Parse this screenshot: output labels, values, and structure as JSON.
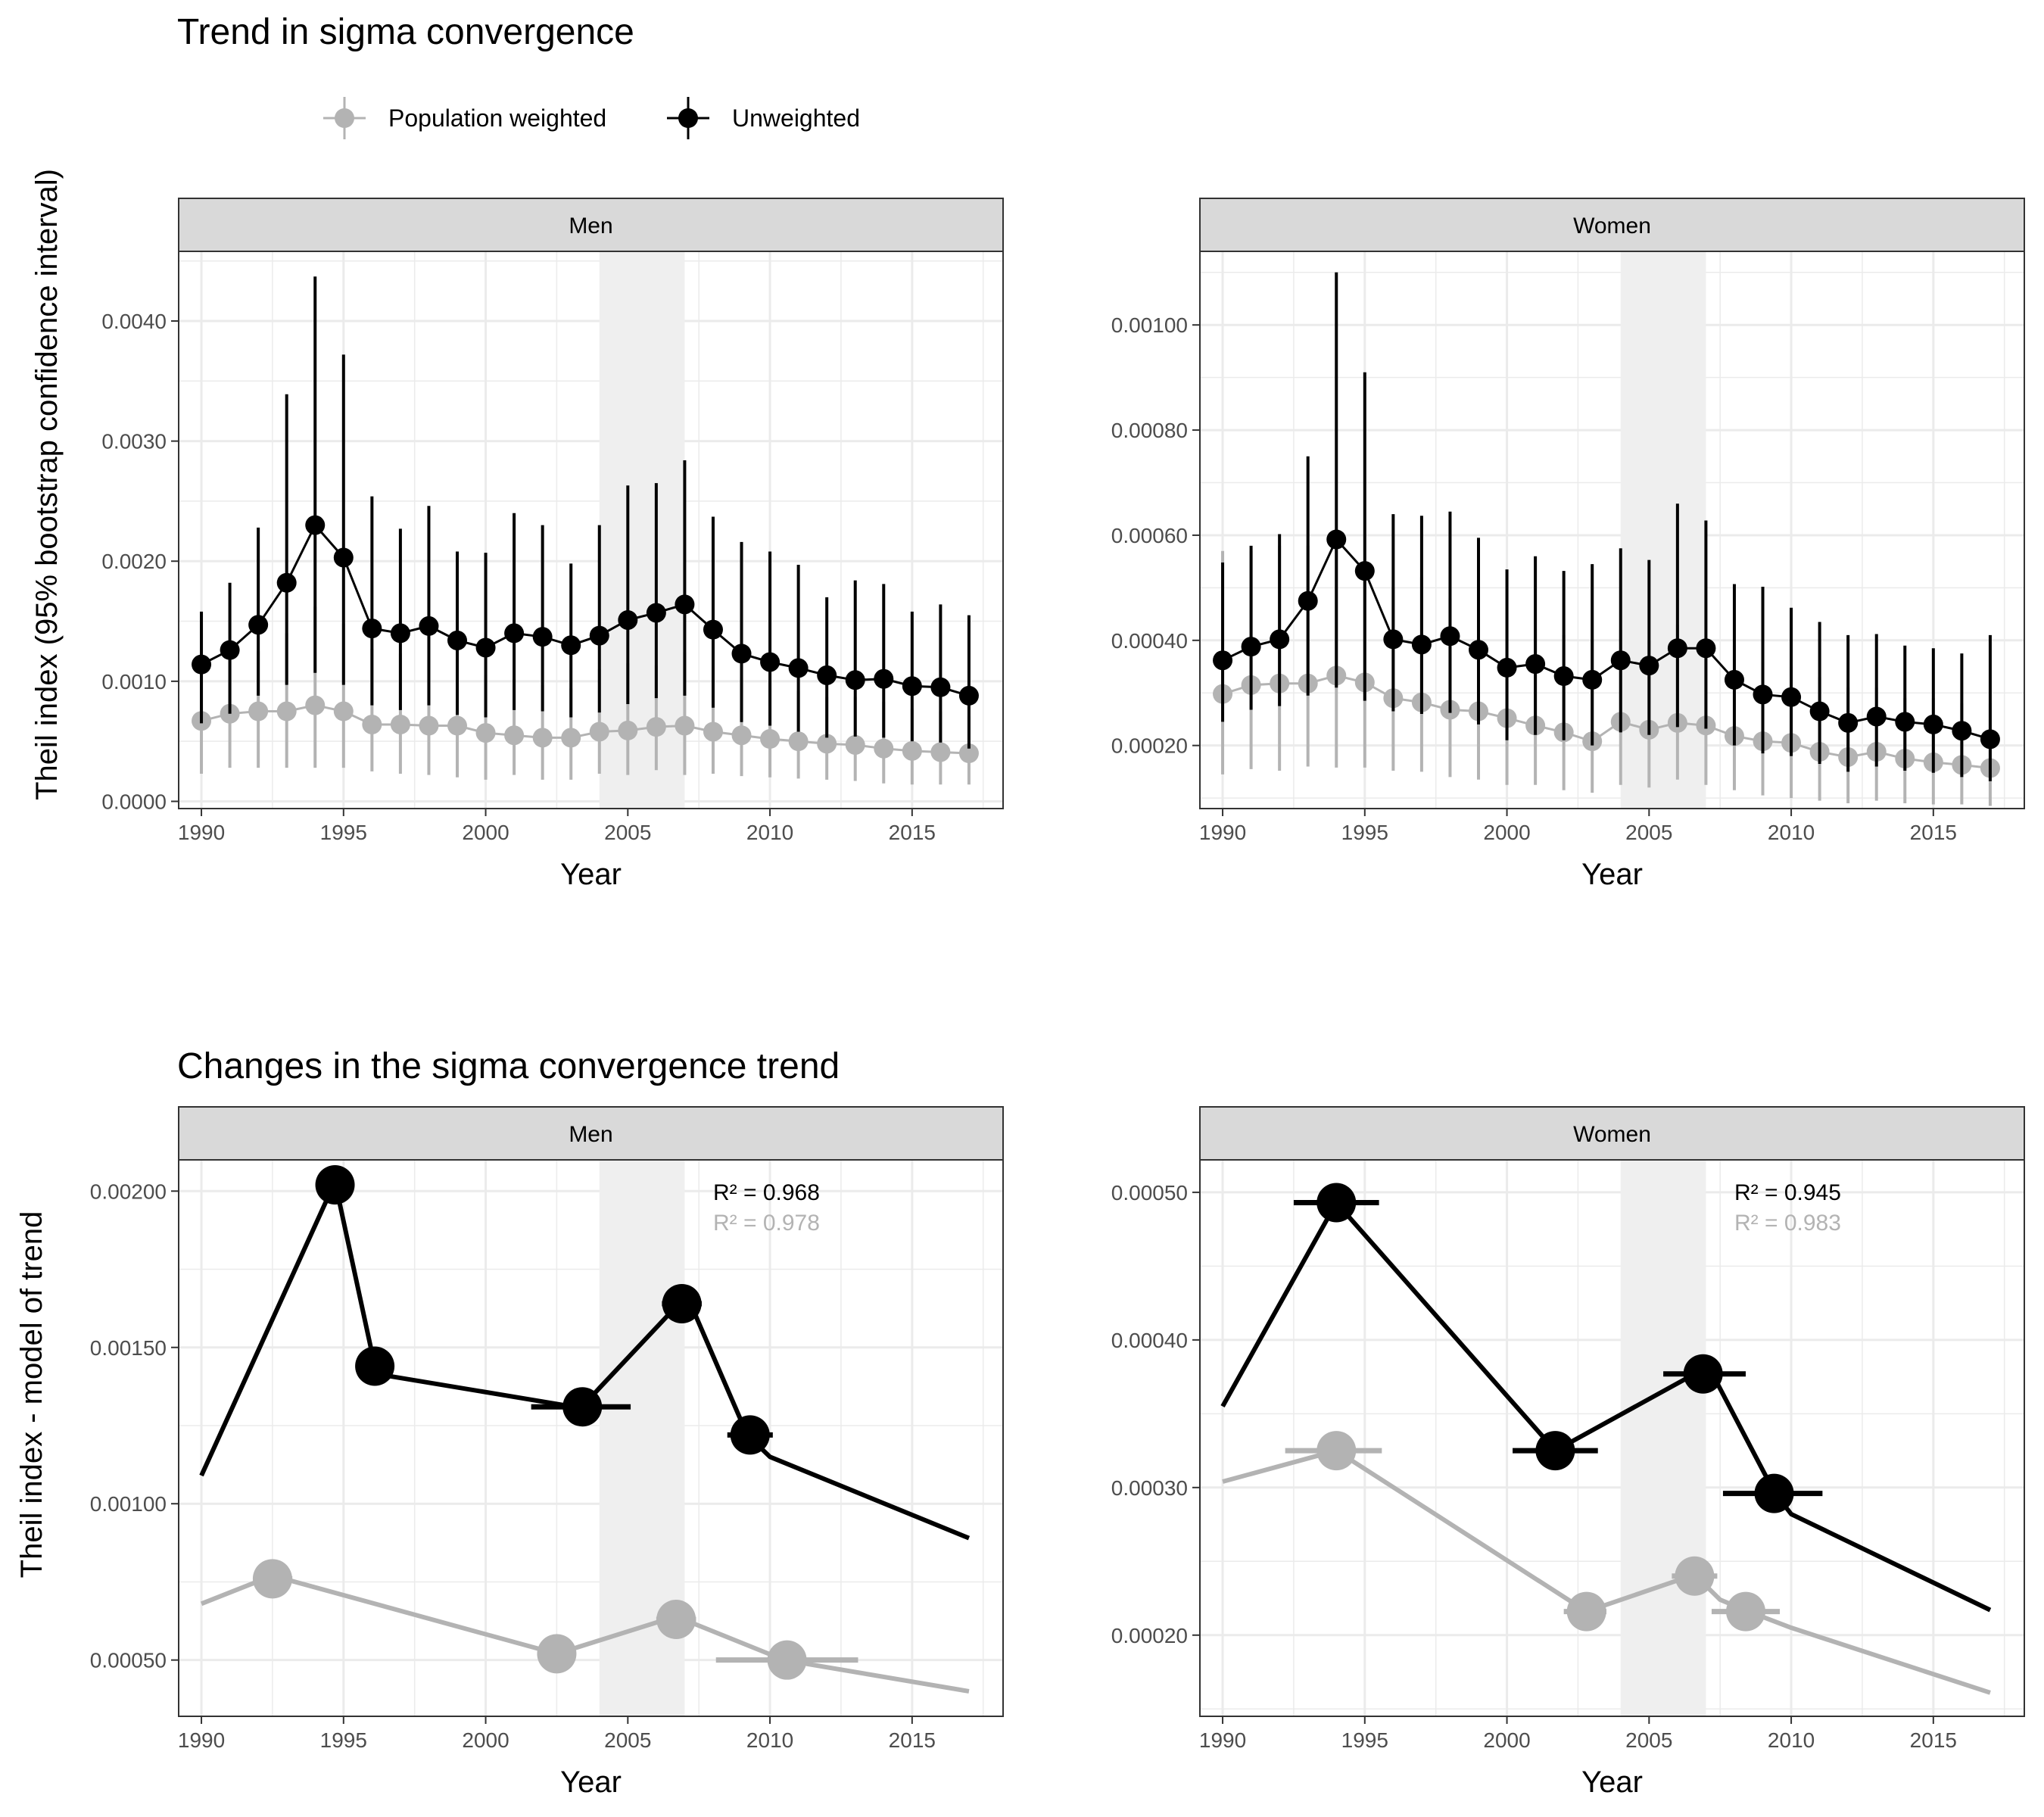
{
  "titles": {
    "top": "Trend in sigma convergence",
    "bottom": "Changes in the sigma convergence trend"
  },
  "legend": [
    {
      "label": "Population weighted",
      "color": "#b3b3b3"
    },
    {
      "label": "Unweighted",
      "color": "#000000"
    }
  ],
  "colors": {
    "weighted": "#b3b3b3",
    "unweighted": "#000000",
    "strip_bg": "#d9d9d9",
    "shade": "#efefef",
    "grid": "#ebebeb"
  },
  "chart_data": [
    {
      "type": "line",
      "panel": "Men",
      "group": "top",
      "strip": "Men",
      "xlabel": "Year",
      "ylabel": "Theil index (95% bootstrap confidence interval)",
      "xlim": [
        1989.2,
        2018.2
      ],
      "ylim": [
        -6e-05,
        0.00458
      ],
      "xticks": [
        1990,
        1995,
        2000,
        2005,
        2010,
        2015
      ],
      "yticks": [
        0,
        0.001,
        0.002,
        0.003,
        0.004
      ],
      "ytick_labels": [
        "0.0000",
        "0.0010",
        "0.0020",
        "0.0030",
        "0.0040"
      ],
      "shade": [
        2004,
        2007
      ],
      "x": [
        1990,
        1991,
        1992,
        1993,
        1994,
        1995,
        1996,
        1997,
        1998,
        1999,
        2000,
        2001,
        2002,
        2003,
        2004,
        2005,
        2006,
        2007,
        2008,
        2009,
        2010,
        2011,
        2012,
        2013,
        2014,
        2015,
        2016,
        2017
      ],
      "series": [
        {
          "name": "Population weighted",
          "values": [
            0.00067,
            0.00073,
            0.00075,
            0.00075,
            0.0008,
            0.00075,
            0.00064,
            0.00064,
            0.00063,
            0.00063,
            0.00057,
            0.00055,
            0.00053,
            0.00053,
            0.00058,
            0.00059,
            0.00062,
            0.00063,
            0.00058,
            0.00055,
            0.00052,
            0.0005,
            0.00048,
            0.00047,
            0.00044,
            0.00042,
            0.00041,
            0.0004
          ],
          "lower": [
            0.00023,
            0.00028,
            0.00028,
            0.00028,
            0.00028,
            0.00028,
            0.00025,
            0.00023,
            0.00022,
            0.0002,
            0.00018,
            0.00022,
            0.00018,
            0.00018,
            0.00023,
            0.00022,
            0.00026,
            0.00022,
            0.00023,
            0.00021,
            0.0002,
            0.00019,
            0.00018,
            0.00017,
            0.00015,
            0.00014,
            0.00014,
            0.00014
          ],
          "upper": [
            0.00114,
            0.00125,
            0.00125,
            0.0014,
            0.00162,
            0.00148,
            0.00127,
            0.00123,
            0.00118,
            0.00118,
            0.00105,
            0.00102,
            0.00097,
            0.00094,
            0.0011,
            0.00115,
            0.00113,
            0.00124,
            0.00112,
            0.00103,
            0.001,
            0.00092,
            0.00087,
            0.00087,
            0.00083,
            0.00077,
            0.00075,
            0.00071
          ]
        },
        {
          "name": "Unweighted",
          "values": [
            0.00114,
            0.00126,
            0.00147,
            0.00182,
            0.0023,
            0.00203,
            0.00144,
            0.0014,
            0.00146,
            0.00134,
            0.00128,
            0.0014,
            0.00137,
            0.0013,
            0.00138,
            0.00151,
            0.00157,
            0.00164,
            0.00143,
            0.00123,
            0.00116,
            0.00111,
            0.00105,
            0.00101,
            0.00102,
            0.00096,
            0.00095,
            0.00088
          ],
          "lower": [
            0.00065,
            0.00073,
            0.00088,
            0.00097,
            0.00107,
            0.00097,
            0.0008,
            0.00076,
            0.0008,
            0.00072,
            0.0007,
            0.00076,
            0.00075,
            0.0007,
            0.00074,
            0.00081,
            0.00086,
            0.00088,
            0.00078,
            0.00066,
            0.00063,
            0.00058,
            0.00053,
            0.00054,
            0.00053,
            0.0005,
            0.00049,
            0.00044
          ],
          "upper": [
            0.00158,
            0.00182,
            0.00228,
            0.00339,
            0.00437,
            0.00372,
            0.00254,
            0.00227,
            0.00246,
            0.00208,
            0.00207,
            0.0024,
            0.0023,
            0.00198,
            0.0023,
            0.00263,
            0.00265,
            0.00284,
            0.00237,
            0.00216,
            0.00208,
            0.00197,
            0.0017,
            0.00184,
            0.00181,
            0.00158,
            0.00164,
            0.00155
          ]
        }
      ]
    },
    {
      "type": "line",
      "panel": "Women",
      "group": "top",
      "strip": "Women",
      "xlabel": "Year",
      "ylabel": "",
      "xlim": [
        1989.2,
        2018.2
      ],
      "ylim": [
        8e-05,
        0.00114
      ],
      "xticks": [
        1990,
        1995,
        2000,
        2005,
        2010,
        2015
      ],
      "yticks": [
        0.0002,
        0.0004,
        0.0006,
        0.0008,
        0.001
      ],
      "ytick_labels": [
        "0.00020",
        "0.00040",
        "0.00060",
        "0.00080",
        "0.00100"
      ],
      "shade": [
        2004,
        2007
      ],
      "x": [
        1990,
        1991,
        1992,
        1993,
        1994,
        1995,
        1996,
        1997,
        1998,
        1999,
        2000,
        2001,
        2002,
        2003,
        2004,
        2005,
        2006,
        2007,
        2008,
        2009,
        2010,
        2011,
        2012,
        2013,
        2014,
        2015,
        2016,
        2017
      ],
      "series": [
        {
          "name": "Population weighted",
          "values": [
            0.000298,
            0.000315,
            0.000318,
            0.000318,
            0.000333,
            0.00032,
            0.00029,
            0.000282,
            0.000268,
            0.000265,
            0.000252,
            0.000238,
            0.000225,
            0.000208,
            0.000245,
            0.00023,
            0.000243,
            0.000238,
            0.000218,
            0.000208,
            0.000205,
            0.000188,
            0.000178,
            0.000188,
            0.000175,
            0.000168,
            0.000163,
            0.000157
          ],
          "lower": [
            0.000145,
            0.000155,
            0.000152,
            0.00016,
            0.000158,
            0.000158,
            0.000152,
            0.00015,
            0.00014,
            0.000135,
            0.000125,
            0.000125,
            0.000115,
            0.00011,
            0.000125,
            0.00012,
            0.000135,
            0.000125,
            0.000115,
            0.000105,
            0.0001,
            9.5e-05,
            9e-05,
            9.5e-05,
            9e-05,
            8.8e-05,
            8.8e-05,
            8.5e-05
          ],
          "upper": [
            0.00057,
            0.00057,
            0.00058,
            0.00058,
            0.00058,
            0.00055,
            0.0005,
            0.00052,
            0.00048,
            0.00043,
            0.00042,
            0.00042,
            0.00041,
            0.0004,
            0.00042,
            0.0004,
            0.00043,
            0.0004,
            0.00039,
            0.00036,
            0.00035,
            0.00033,
            0.00031,
            0.00031,
            0.00029,
            0.00029,
            0.00028,
            0.00028
          ]
        },
        {
          "name": "Unweighted",
          "values": [
            0.000362,
            0.000388,
            0.000402,
            0.000475,
            0.000592,
            0.000532,
            0.000402,
            0.000392,
            0.000408,
            0.000382,
            0.000348,
            0.000355,
            0.000332,
            0.000325,
            0.000362,
            0.000352,
            0.000385,
            0.000385,
            0.000325,
            0.000297,
            0.000292,
            0.000265,
            0.000243,
            0.000255,
            0.000245,
            0.00024,
            0.000228,
            0.000212
          ],
          "lower": [
            0.000245,
            0.000268,
            0.000275,
            0.000295,
            0.00031,
            0.000285,
            0.000265,
            0.00026,
            0.000262,
            0.00024,
            0.00021,
            0.00022,
            0.00021,
            0.0002,
            0.000225,
            0.00022,
            0.000235,
            0.000232,
            0.0002,
            0.000185,
            0.00018,
            0.000165,
            0.00015,
            0.00016,
            0.000152,
            0.000148,
            0.00014,
            0.000132
          ],
          "upper": [
            0.000548,
            0.00058,
            0.000602,
            0.00075,
            0.0011,
            0.00091,
            0.00064,
            0.000637,
            0.000645,
            0.000595,
            0.000535,
            0.00056,
            0.000532,
            0.000545,
            0.000575,
            0.000553,
            0.00066,
            0.000628,
            0.000507,
            0.000502,
            0.000462,
            0.000435,
            0.00041,
            0.000412,
            0.00039,
            0.000385,
            0.000375,
            0.00041
          ]
        }
      ]
    },
    {
      "type": "line",
      "panel": "Men",
      "group": "bottom",
      "strip": "Men",
      "xlabel": "Year",
      "ylabel": "Theil index - model of trend",
      "xlim": [
        1989.2,
        2018.2
      ],
      "ylim": [
        0.00032,
        0.0021
      ],
      "xticks": [
        1990,
        1995,
        2000,
        2005,
        2010,
        2015
      ],
      "yticks": [
        0.0005,
        0.001,
        0.0015,
        0.002
      ],
      "ytick_labels": [
        "0.00050",
        "0.00100",
        "0.00150",
        "0.00200"
      ],
      "shade": [
        2004,
        2007
      ],
      "annotations": [
        {
          "text": "R² = 0.968",
          "color": "#000000"
        },
        {
          "text": "R² = 0.978",
          "color": "#b3b3b3"
        }
      ],
      "series": [
        {
          "name": "Unweighted",
          "line": [
            [
              1990,
              0.00109
            ],
            [
              1994.7,
              0.00203
            ],
            [
              1996.1,
              0.00144
            ],
            [
              1996.5,
              0.00141
            ],
            [
              2003.1,
              0.00131
            ],
            [
              2003.5,
              0.00132
            ],
            [
              2004,
              0.00137
            ],
            [
              2006.9,
              0.00165
            ],
            [
              2007.3,
              0.00162
            ],
            [
              2009.2,
              0.00122
            ],
            [
              2010,
              0.00115
            ],
            [
              2017,
              0.00089
            ]
          ],
          "breakpoints": [
            {
              "x": 1994.7,
              "y": 0.00202,
              "lo": 1994.7,
              "hi": 1994.7
            },
            {
              "x": 1996.1,
              "y": 0.00144,
              "lo": 1996.1,
              "hi": 1996.1
            },
            {
              "x": 2003.4,
              "y": 0.00131,
              "lo": 2001.6,
              "hi": 2005.1
            },
            {
              "x": 2006.9,
              "y": 0.00164,
              "lo": 2006.2,
              "hi": 2007.6
            },
            {
              "x": 2009.3,
              "y": 0.00122,
              "lo": 2008.5,
              "hi": 2010.1
            }
          ]
        },
        {
          "name": "Population weighted",
          "line": [
            [
              1990,
              0.00068
            ],
            [
              1992.5,
              0.00077
            ],
            [
              2002.5,
              0.00052
            ],
            [
              2006.7,
              0.00064
            ],
            [
              2007.5,
              0.00061
            ],
            [
              2010.5,
              0.0005
            ],
            [
              2017,
              0.0004
            ]
          ],
          "breakpoints": [
            {
              "x": 1992.5,
              "y": 0.00076,
              "lo": 1991.9,
              "hi": 1993.2
            },
            {
              "x": 2002.5,
              "y": 0.00052,
              "lo": 2002.1,
              "hi": 2002.9
            },
            {
              "x": 2006.7,
              "y": 0.00063,
              "lo": 2006.0,
              "hi": 2007.4
            },
            {
              "x": 2010.6,
              "y": 0.0005,
              "lo": 2008.1,
              "hi": 2013.1
            }
          ]
        }
      ]
    },
    {
      "type": "line",
      "panel": "Women",
      "group": "bottom",
      "strip": "Women",
      "xlabel": "Year",
      "ylabel": "",
      "xlim": [
        1989.2,
        2018.2
      ],
      "ylim": [
        0.000145,
        0.000522
      ],
      "xticks": [
        1990,
        1995,
        2000,
        2005,
        2010,
        2015
      ],
      "yticks": [
        0.0002,
        0.0003,
        0.0004,
        0.0005
      ],
      "ytick_labels": [
        "0.00020",
        "0.00030",
        "0.00040",
        "0.00050"
      ],
      "shade": [
        2004,
        2007
      ],
      "annotations": [
        {
          "text": "R² = 0.945",
          "color": "#000000"
        },
        {
          "text": "R² = 0.983",
          "color": "#b3b3b3"
        }
      ],
      "series": [
        {
          "name": "Unweighted",
          "line": [
            [
              1990,
              0.000355
            ],
            [
              1994,
              0.000493
            ],
            [
              2001.7,
              0.000325
            ],
            [
              2006.7,
              0.000378
            ],
            [
              2007.2,
              0.000378
            ],
            [
              2009.4,
              0.000297
            ],
            [
              2010,
              0.000282
            ],
            [
              2017,
              0.000217
            ]
          ],
          "breakpoints": [
            {
              "x": 1994,
              "y": 0.000493,
              "lo": 1992.5,
              "hi": 1995.5
            },
            {
              "x": 2001.7,
              "y": 0.000325,
              "lo": 2000.2,
              "hi": 2003.2
            },
            {
              "x": 2006.9,
              "y": 0.000377,
              "lo": 2005.5,
              "hi": 2008.4
            },
            {
              "x": 2009.4,
              "y": 0.000296,
              "lo": 2007.6,
              "hi": 2011.1
            }
          ]
        },
        {
          "name": "Population weighted",
          "line": [
            [
              1990,
              0.000304
            ],
            [
              1994,
              0.000325
            ],
            [
              2002.8,
              0.000216
            ],
            [
              2006.6,
              0.000241
            ],
            [
              2007.5,
              0.000224
            ],
            [
              2008.5,
              0.000216
            ],
            [
              2010,
              0.000205
            ],
            [
              2017,
              0.000161
            ]
          ],
          "breakpoints": [
            {
              "x": 1994,
              "y": 0.000325,
              "lo": 1992.2,
              "hi": 1995.6
            },
            {
              "x": 2002.8,
              "y": 0.000216,
              "lo": 2002.0,
              "hi": 2003.5
            },
            {
              "x": 2006.6,
              "y": 0.00024,
              "lo": 2005.8,
              "hi": 2007.4
            },
            {
              "x": 2008.4,
              "y": 0.000216,
              "lo": 2007.2,
              "hi": 2009.6
            }
          ]
        }
      ]
    }
  ]
}
